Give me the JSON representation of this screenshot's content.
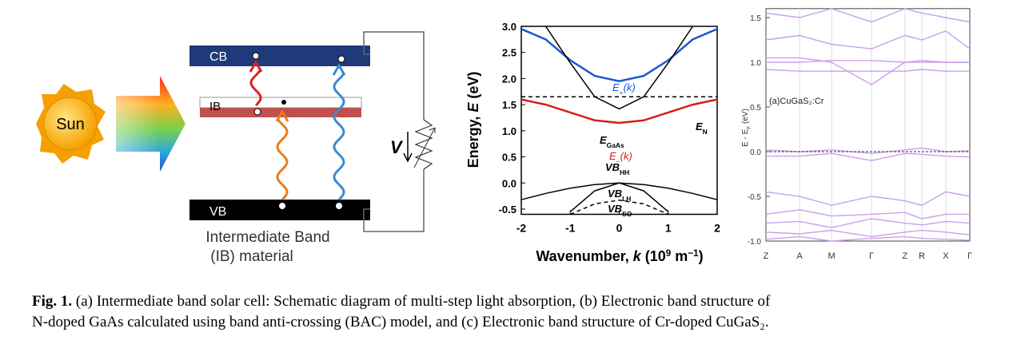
{
  "figure_a": {
    "sun": "Sun",
    "cb": "CB",
    "ib": "IB",
    "vb": "VB",
    "voltage": "V",
    "caption_lines": [
      "Intermediate Band",
      "(IB) material"
    ]
  },
  "chart_data": [
    {
      "type": "line",
      "ylabel": [
        "Energy, ",
        "E",
        " (eV)"
      ],
      "xlabel": [
        "Wavenumber, ",
        "k",
        " (10",
        "9",
        " m",
        "−1",
        ")"
      ],
      "x": [
        -2,
        -1.5,
        -1,
        -0.5,
        0,
        0.5,
        1,
        1.5,
        2
      ],
      "xlim": [
        -2,
        2
      ],
      "xticks": [
        -2,
        -1,
        0,
        1,
        2
      ],
      "ylim": [
        -0.6,
        3.0
      ],
      "yticks": [
        {
          "value": 3,
          "label": "3.0"
        },
        2.5,
        {
          "value": 2,
          "label": "2.0"
        },
        1.5,
        {
          "value": 1,
          "label": "1.0"
        },
        0.5,
        {
          "value": 0,
          "label": "0.0"
        },
        -0.5
      ],
      "series": [
        {
          "name": [
            "E",
            "+",
            "(",
            "k",
            ")"
          ],
          "color": "#1a56d6",
          "values": [
            2.95,
            2.75,
            2.35,
            2.05,
            1.95,
            2.05,
            2.35,
            2.75,
            2.95
          ]
        },
        {
          "name": [
            "E",
            "N"
          ],
          "color": "#000000",
          "dashed": true,
          "values": [
            1.65,
            1.65,
            1.65,
            1.65,
            1.65,
            1.65,
            1.65,
            1.65,
            1.65
          ]
        },
        {
          "name": [
            "E",
            "GaAs"
          ],
          "color": "#000000",
          "values": [
            null,
            3.0,
            2.3,
            1.65,
            1.42,
            1.65,
            2.3,
            3.0,
            null
          ]
        },
        {
          "name": [
            "E",
            "−",
            "(",
            "k",
            ")"
          ],
          "color": "#d41e1e",
          "values": [
            1.6,
            1.5,
            1.35,
            1.2,
            1.15,
            1.2,
            1.35,
            1.5,
            1.6
          ]
        },
        {
          "name": [
            "VB",
            "HH"
          ],
          "color": "#000000",
          "values": [
            -0.32,
            -0.2,
            -0.1,
            -0.03,
            0,
            -0.03,
            -0.1,
            -0.2,
            -0.32
          ]
        },
        {
          "name": [
            "VB",
            "LH"
          ],
          "color": "#000000",
          "values": [
            null,
            null,
            -0.55,
            -0.15,
            0,
            -0.15,
            -0.55,
            null,
            null
          ]
        },
        {
          "name": [
            "VB",
            "SO"
          ],
          "color": "#000000",
          "dashed": true,
          "values": [
            null,
            null,
            -0.6,
            -0.4,
            -0.33,
            -0.4,
            -0.6,
            null,
            null
          ]
        }
      ]
    },
    {
      "type": "line",
      "ylabel": [
        "E - E",
        "F",
        " (eV)"
      ],
      "annotation": "(a)CuGaS₂:Cr",
      "categories": [
        "Z",
        "A",
        "M",
        "Γ",
        "Z",
        "R",
        "X",
        "Γ"
      ],
      "ylim": [
        -1.0,
        1.6
      ],
      "yticks": [
        1.5,
        {
          "value": 1,
          "label": "1.0"
        },
        0.5,
        {
          "value": 0,
          "label": "0.0"
        },
        -0.5,
        {
          "value": -1,
          "label": "-1.0"
        }
      ],
      "fermi_level": 0,
      "color": "#c9a0ea",
      "series": [
        {
          "values": [
            1.55,
            1.5,
            1.6,
            1.45,
            1.6,
            1.55,
            1.5,
            1.45
          ]
        },
        {
          "values": [
            1.25,
            1.3,
            1.2,
            1.15,
            1.3,
            1.25,
            1.35,
            1.15
          ]
        },
        {
          "values": [
            1.05,
            1.05,
            1.0,
            0.75,
            1.0,
            1.0,
            1.0,
            1.0
          ]
        },
        {
          "values": [
            1.0,
            1.0,
            1.02,
            1.02,
            1.0,
            1.02,
            1.0,
            1.0
          ]
        },
        {
          "values": [
            0.92,
            0.9,
            0.9,
            0.9,
            0.9,
            0.92,
            0.9,
            0.9
          ]
        },
        {
          "values": [
            0.02,
            0.0,
            0.02,
            -0.02,
            0.02,
            0.04,
            0.0,
            0.01
          ]
        },
        {
          "values": [
            -0.05,
            -0.05,
            -0.02,
            -0.1,
            -0.02,
            -0.03,
            -0.05,
            -0.06
          ]
        },
        {
          "values": [
            -0.45,
            -0.5,
            -0.6,
            -0.5,
            -0.55,
            -0.6,
            -0.45,
            -0.5
          ]
        },
        {
          "values": [
            -0.7,
            -0.65,
            -0.72,
            -0.7,
            -0.68,
            -0.75,
            -0.7,
            -0.7
          ]
        },
        {
          "values": [
            -0.8,
            -0.78,
            -0.85,
            -0.75,
            -0.8,
            -0.82,
            -0.78,
            -0.8
          ]
        },
        {
          "values": [
            -0.9,
            -0.92,
            -0.88,
            -0.95,
            -0.9,
            -0.88,
            -0.9,
            -0.93
          ]
        },
        {
          "values": [
            -0.98,
            -0.95,
            -1.0,
            -0.97,
            -0.95,
            -0.97,
            -0.98,
            -0.99
          ]
        }
      ]
    }
  ],
  "caption": {
    "label": "Fig. 1.",
    "lines": [
      " (a) Intermediate band solar cell: Schematic diagram of multi-step light absorption, (b) Electronic band structure of",
      "N-doped GaAs calculated using band anti-crossing (BAC) model, and (c) Electronic band structure of Cr-doped CuGaS₂."
    ]
  }
}
